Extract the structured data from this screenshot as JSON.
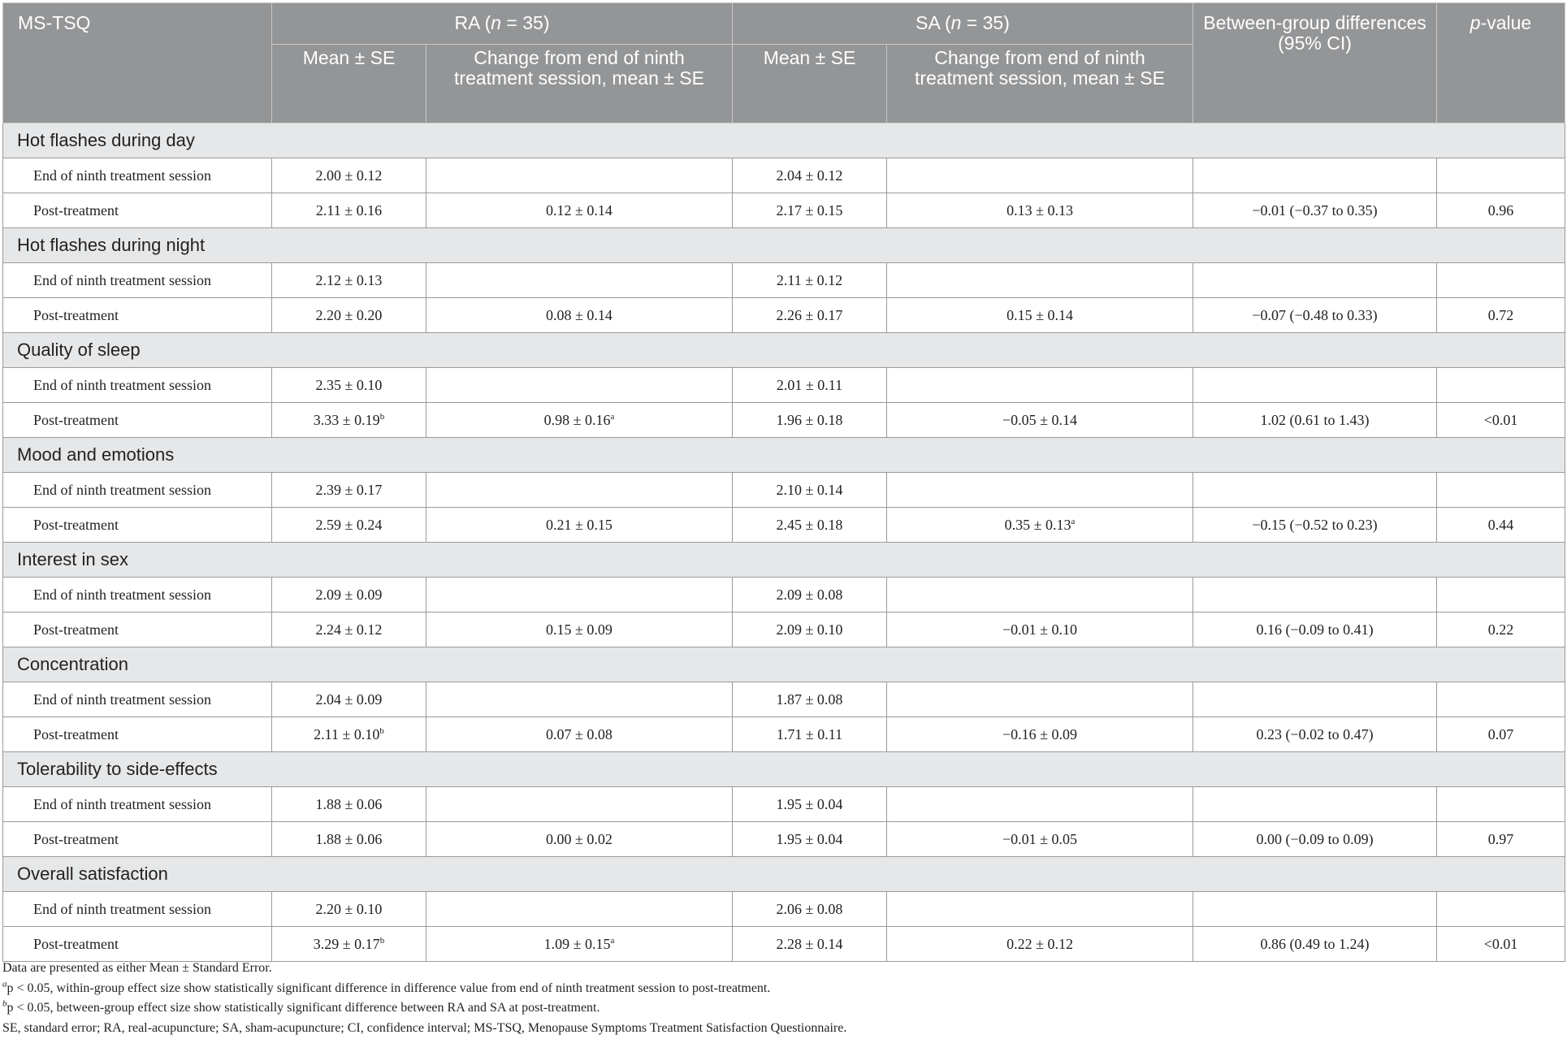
{
  "header": {
    "col1": "MS-TSQ",
    "ra_prefix": "RA (",
    "ra_n": "n",
    "ra_suffix": " = 35)",
    "sa_prefix": "SA (",
    "sa_n": "n",
    "sa_suffix": " = 35)",
    "between": "Between-group differences (95% CI)",
    "pvalue_p": "p",
    "pvalue_rest": "-value",
    "ra_mean": "Mean ± SE",
    "ra_change": "Change from end of ninth treatment session, mean ± SE",
    "sa_mean": "Mean ± SE",
    "sa_change": "Change from end of ninth treatment session, mean ± SE"
  },
  "sections": [
    {
      "title": "Hot flashes during day",
      "rows": [
        {
          "label": "End of ninth treatment session",
          "ra_mean": "2.00 ± 0.12",
          "ra_mean_sup": "",
          "ra_change": "",
          "ra_change_sup": "",
          "sa_mean": "2.04 ± 0.12",
          "sa_change": "",
          "sa_change_sup": "",
          "diff": "",
          "p": ""
        },
        {
          "label": "Post-treatment",
          "ra_mean": "2.11 ± 0.16",
          "ra_mean_sup": "",
          "ra_change": "0.12 ± 0.14",
          "ra_change_sup": "",
          "sa_mean": "2.17 ± 0.15",
          "sa_change": "0.13 ± 0.13",
          "sa_change_sup": "",
          "diff": "−0.01 (−0.37 to 0.35)",
          "p": "0.96"
        }
      ]
    },
    {
      "title": "Hot flashes during night",
      "rows": [
        {
          "label": "End of ninth treatment session",
          "ra_mean": "2.12 ± 0.13",
          "ra_mean_sup": "",
          "ra_change": "",
          "ra_change_sup": "",
          "sa_mean": "2.11 ± 0.12",
          "sa_change": "",
          "sa_change_sup": "",
          "diff": "",
          "p": ""
        },
        {
          "label": "Post-treatment",
          "ra_mean": "2.20 ± 0.20",
          "ra_mean_sup": "",
          "ra_change": "0.08 ± 0.14",
          "ra_change_sup": "",
          "sa_mean": "2.26 ± 0.17",
          "sa_change": "0.15 ± 0.14",
          "sa_change_sup": "",
          "diff": "−0.07 (−0.48 to 0.33)",
          "p": "0.72"
        }
      ]
    },
    {
      "title": "Quality of sleep",
      "rows": [
        {
          "label": "End of ninth treatment session",
          "ra_mean": "2.35 ± 0.10",
          "ra_mean_sup": "",
          "ra_change": "",
          "ra_change_sup": "",
          "sa_mean": "2.01 ± 0.11",
          "sa_change": "",
          "sa_change_sup": "",
          "diff": "",
          "p": ""
        },
        {
          "label": "Post-treatment",
          "ra_mean": "3.33 ± 0.19",
          "ra_mean_sup": "b",
          "ra_change": "0.98 ± 0.16",
          "ra_change_sup": "a",
          "sa_mean": "1.96 ± 0.18",
          "sa_change": "−0.05 ± 0.14",
          "sa_change_sup": "",
          "diff": "1.02 (0.61 to 1.43)",
          "p": "<0.01"
        }
      ]
    },
    {
      "title": "Mood and emotions",
      "rows": [
        {
          "label": "End of ninth treatment session",
          "ra_mean": "2.39 ± 0.17",
          "ra_mean_sup": "",
          "ra_change": "",
          "ra_change_sup": "",
          "sa_mean": "2.10 ± 0.14",
          "sa_change": "",
          "sa_change_sup": "",
          "diff": "",
          "p": ""
        },
        {
          "label": "Post-treatment",
          "ra_mean": "2.59 ± 0.24",
          "ra_mean_sup": "",
          "ra_change": "0.21 ± 0.15",
          "ra_change_sup": "",
          "sa_mean": "2.45 ± 0.18",
          "sa_change": "0.35 ± 0.13",
          "sa_change_sup": "a",
          "diff": "−0.15 (−0.52 to 0.23)",
          "p": "0.44"
        }
      ]
    },
    {
      "title": "Interest in sex",
      "rows": [
        {
          "label": "End of ninth treatment session",
          "ra_mean": "2.09 ± 0.09",
          "ra_mean_sup": "",
          "ra_change": "",
          "ra_change_sup": "",
          "sa_mean": "2.09 ± 0.08",
          "sa_change": "",
          "sa_change_sup": "",
          "diff": "",
          "p": ""
        },
        {
          "label": "Post-treatment",
          "ra_mean": "2.24 ± 0.12",
          "ra_mean_sup": "",
          "ra_change": "0.15 ± 0.09",
          "ra_change_sup": "",
          "sa_mean": "2.09 ± 0.10",
          "sa_change": "−0.01 ± 0.10",
          "sa_change_sup": "",
          "diff": "0.16 (−0.09 to 0.41)",
          "p": "0.22"
        }
      ]
    },
    {
      "title": "Concentration",
      "rows": [
        {
          "label": "End of ninth treatment session",
          "ra_mean": "2.04 ± 0.09",
          "ra_mean_sup": "",
          "ra_change": "",
          "ra_change_sup": "",
          "sa_mean": "1.87 ± 0.08",
          "sa_change": "",
          "sa_change_sup": "",
          "diff": "",
          "p": ""
        },
        {
          "label": "Post-treatment",
          "ra_mean": "2.11 ± 0.10",
          "ra_mean_sup": "b",
          "ra_change": "0.07 ± 0.08",
          "ra_change_sup": "",
          "sa_mean": "1.71 ± 0.11",
          "sa_change": "−0.16 ± 0.09",
          "sa_change_sup": "",
          "diff": "0.23 (−0.02 to 0.47)",
          "p": "0.07"
        }
      ]
    },
    {
      "title": "Tolerability to side-effects",
      "rows": [
        {
          "label": "End of ninth treatment session",
          "ra_mean": "1.88 ± 0.06",
          "ra_mean_sup": "",
          "ra_change": "",
          "ra_change_sup": "",
          "sa_mean": "1.95 ± 0.04",
          "sa_change": "",
          "sa_change_sup": "",
          "diff": "",
          "p": ""
        },
        {
          "label": "Post-treatment",
          "ra_mean": "1.88 ± 0.06",
          "ra_mean_sup": "",
          "ra_change": "0.00 ± 0.02",
          "ra_change_sup": "",
          "sa_mean": "1.95 ± 0.04",
          "sa_change": "−0.01 ± 0.05",
          "sa_change_sup": "",
          "diff": "0.00 (−0.09 to 0.09)",
          "p": "0.97"
        }
      ]
    },
    {
      "title": "Overall satisfaction",
      "rows": [
        {
          "label": "End of ninth treatment session",
          "ra_mean": "2.20 ± 0.10",
          "ra_mean_sup": "",
          "ra_change": "",
          "ra_change_sup": "",
          "sa_mean": "2.06 ± 0.08",
          "sa_change": "",
          "sa_change_sup": "",
          "diff": "",
          "p": ""
        },
        {
          "label": "Post-treatment",
          "ra_mean": "3.29 ± 0.17",
          "ra_mean_sup": "b",
          "ra_change": "1.09 ± 0.15",
          "ra_change_sup": "a",
          "sa_mean": "2.28 ± 0.14",
          "sa_change": "0.22 ± 0.12",
          "sa_change_sup": "",
          "diff": "0.86 (0.49 to 1.24)",
          "p": "<0.01"
        }
      ]
    }
  ],
  "notes": {
    "line1": "Data are presented as either Mean ± Standard Error.",
    "line2_sup": "a",
    "line2": "p < 0.05, within-group effect size show statistically significant difference in difference value from end of ninth treatment session to post-treatment.",
    "line3_sup": "b",
    "line3": "p < 0.05, between-group effect size show statistically significant difference between RA and SA at post-treatment.",
    "line4": "SE, standard error; RA, real-acupuncture; SA, sham-acupuncture; CI, confidence interval; MS-TSQ, Menopause Symptoms Treatment Satisfaction Questionnaire."
  }
}
